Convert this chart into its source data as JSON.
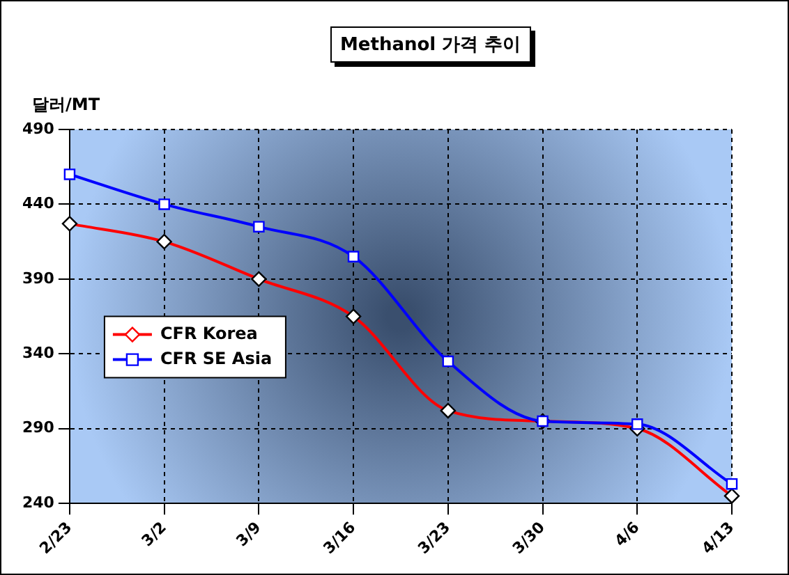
{
  "chart_data": {
    "type": "line",
    "title": "Methanol 가격 추이",
    "ylabel": "달러/MT",
    "categories": [
      "2/23",
      "3/2",
      "3/9",
      "3/16",
      "3/23",
      "3/30",
      "4/6",
      "4/13"
    ],
    "series": [
      {
        "name": "CFR Korea",
        "color": "#ff0000",
        "marker": "diamond",
        "values": [
          427,
          415,
          390,
          365,
          302,
          295,
          290,
          245
        ]
      },
      {
        "name": "CFR SE Asia",
        "color": "#0000ff",
        "marker": "square",
        "values": [
          460,
          440,
          425,
          405,
          335,
          295,
          293,
          253
        ]
      }
    ],
    "ylim": [
      240,
      490
    ],
    "yticks": [
      240,
      290,
      340,
      390,
      440,
      490
    ],
    "grid": true,
    "legend": "left"
  }
}
